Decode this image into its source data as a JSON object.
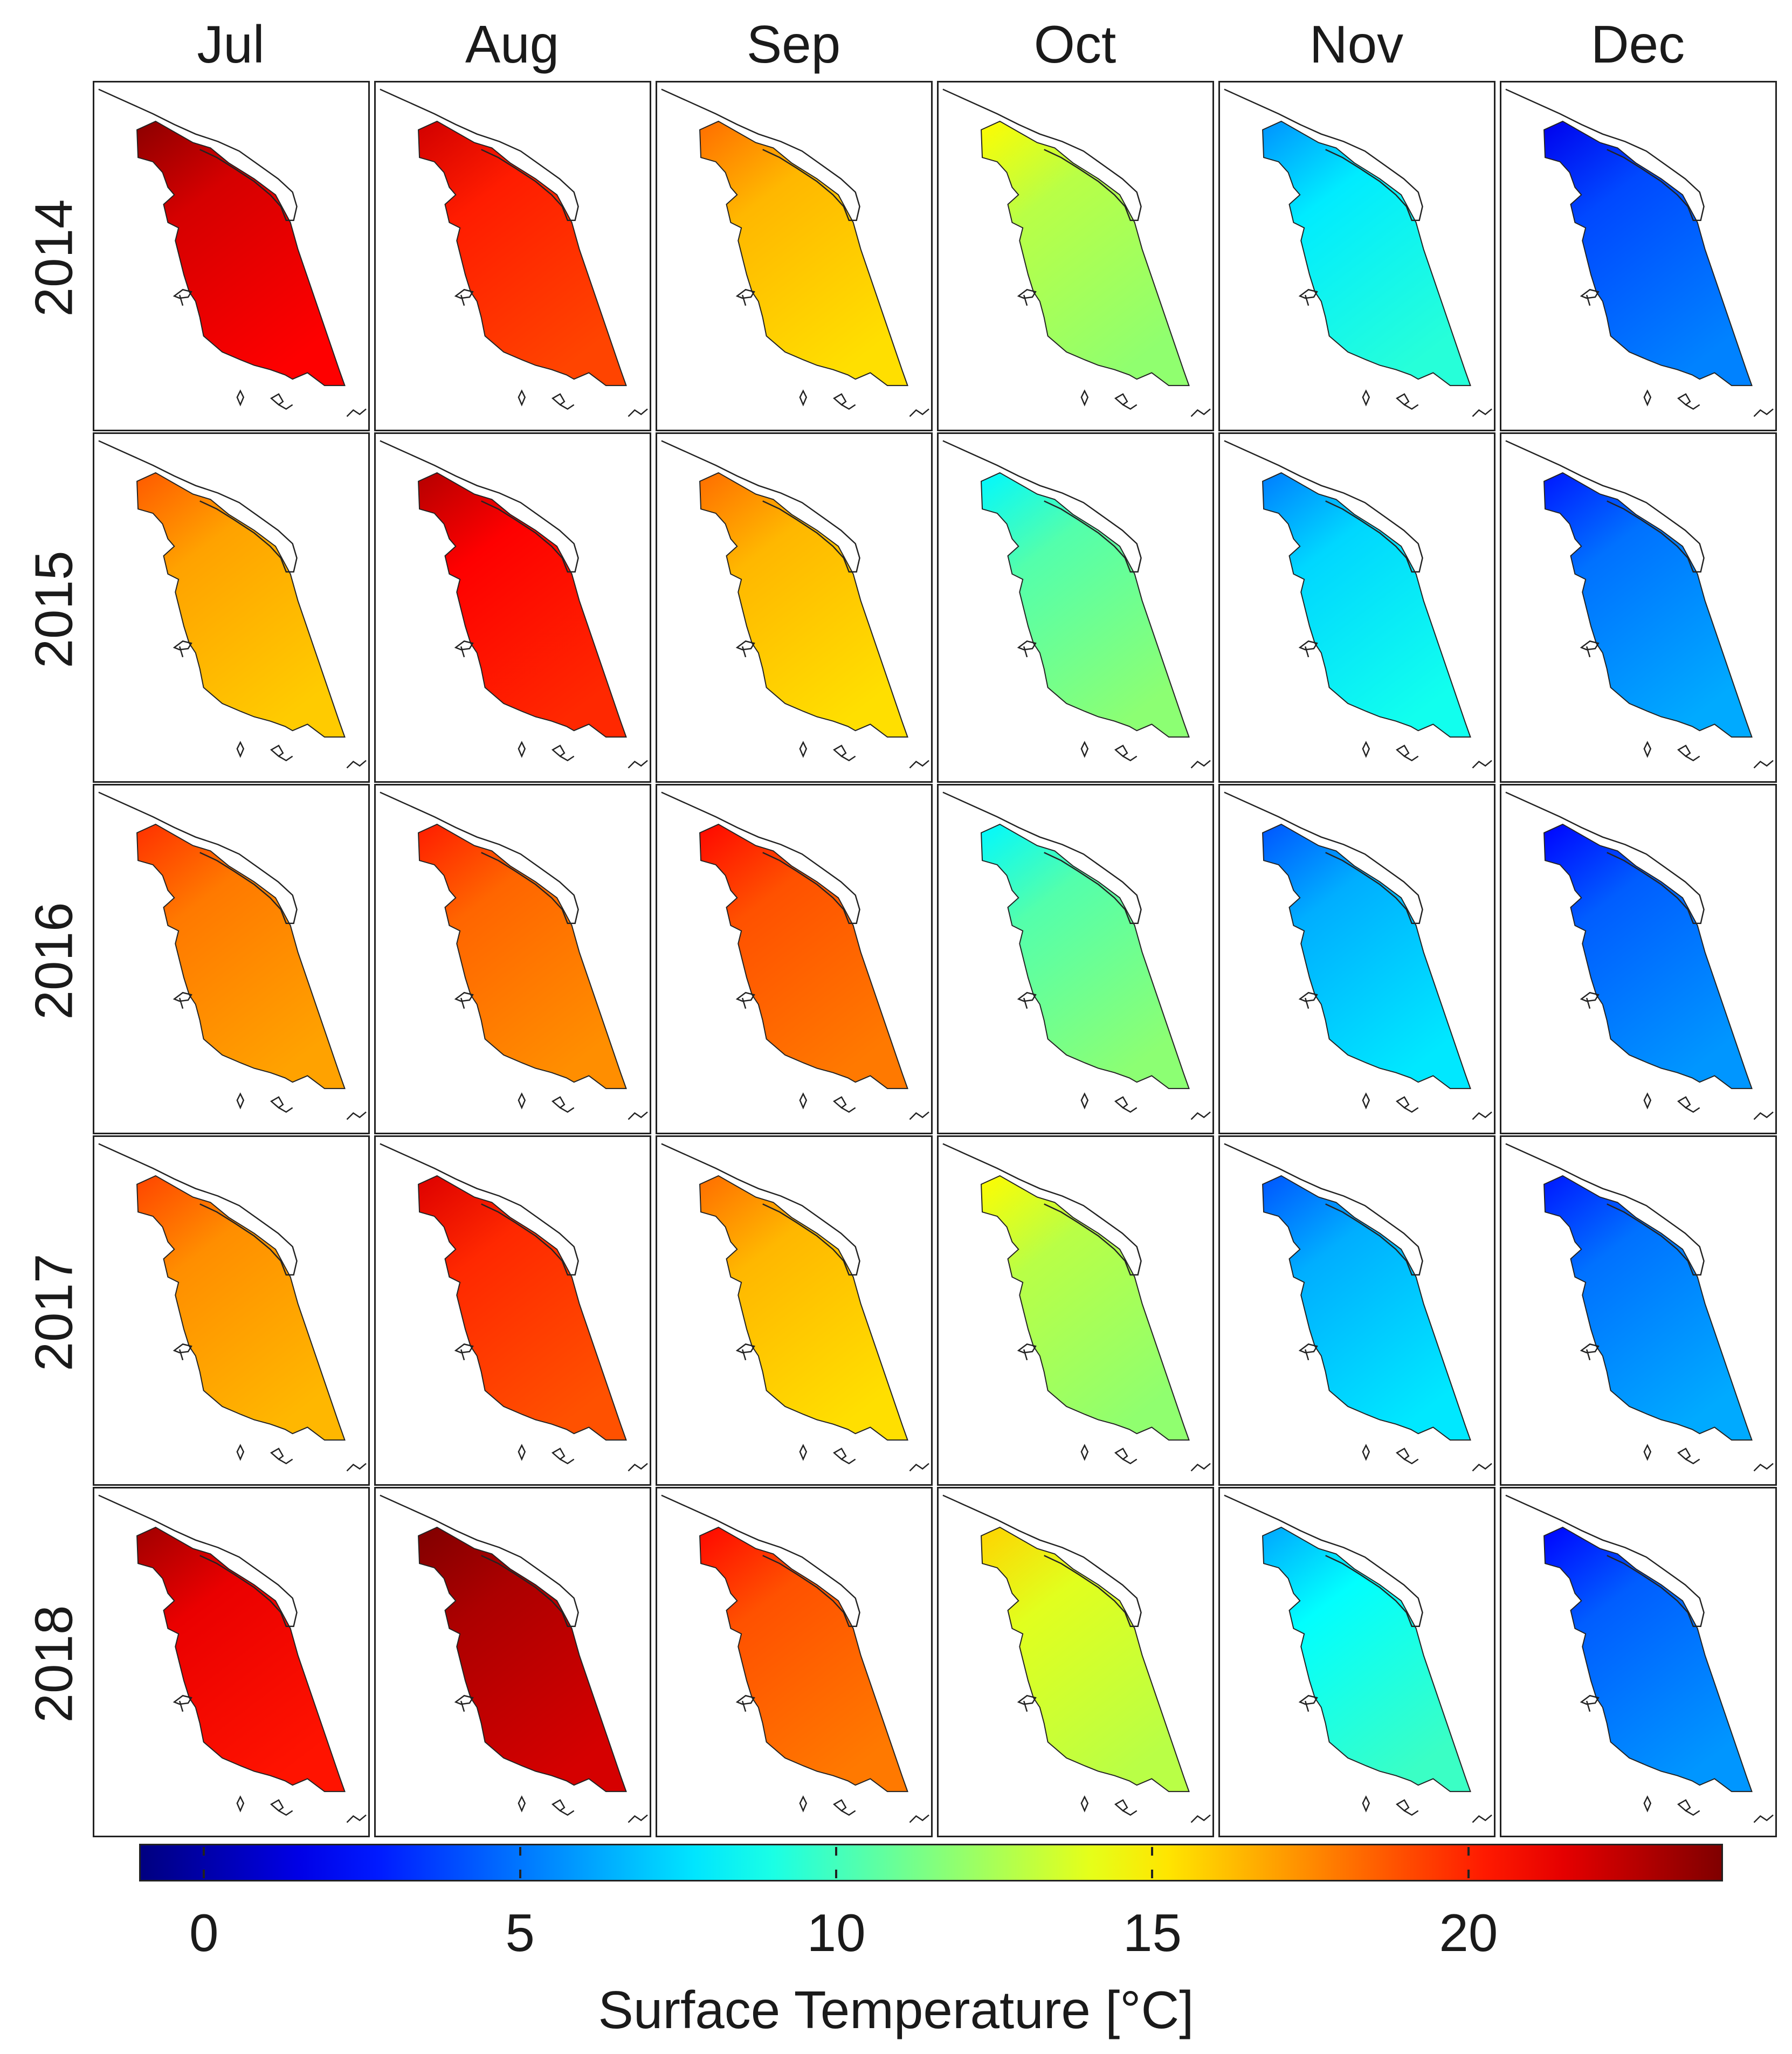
{
  "chart_data": {
    "type": "heatmap",
    "description_kind": "small multiples of mean surface temperature maps (month x year)",
    "columns": [
      "Jul",
      "Aug",
      "Sep",
      "Oct",
      "Nov",
      "Dec"
    ],
    "rows": [
      "2014",
      "2015",
      "2016",
      "2017",
      "2018"
    ],
    "values_degC": [
      [
        21.5,
        19.8,
        16.0,
        12.5,
        8.5,
        4.5
      ],
      [
        16.5,
        20.5,
        16.0,
        11.0,
        8.0,
        5.5
      ],
      [
        17.5,
        18.0,
        18.5,
        11.0,
        7.0,
        5.0
      ],
      [
        17.0,
        19.5,
        16.0,
        12.5,
        7.0,
        5.5
      ],
      [
        21.0,
        22.5,
        18.5,
        13.5,
        9.0,
        5.0
      ]
    ],
    "colorbar": {
      "title": "Surface Temperature [°C]",
      "range": [
        -1,
        24
      ],
      "ticks": [
        0,
        5,
        10,
        15,
        20
      ],
      "tick_labels": [
        "0",
        "5",
        "10",
        "15",
        "20"
      ],
      "colormap": "jet"
    }
  }
}
